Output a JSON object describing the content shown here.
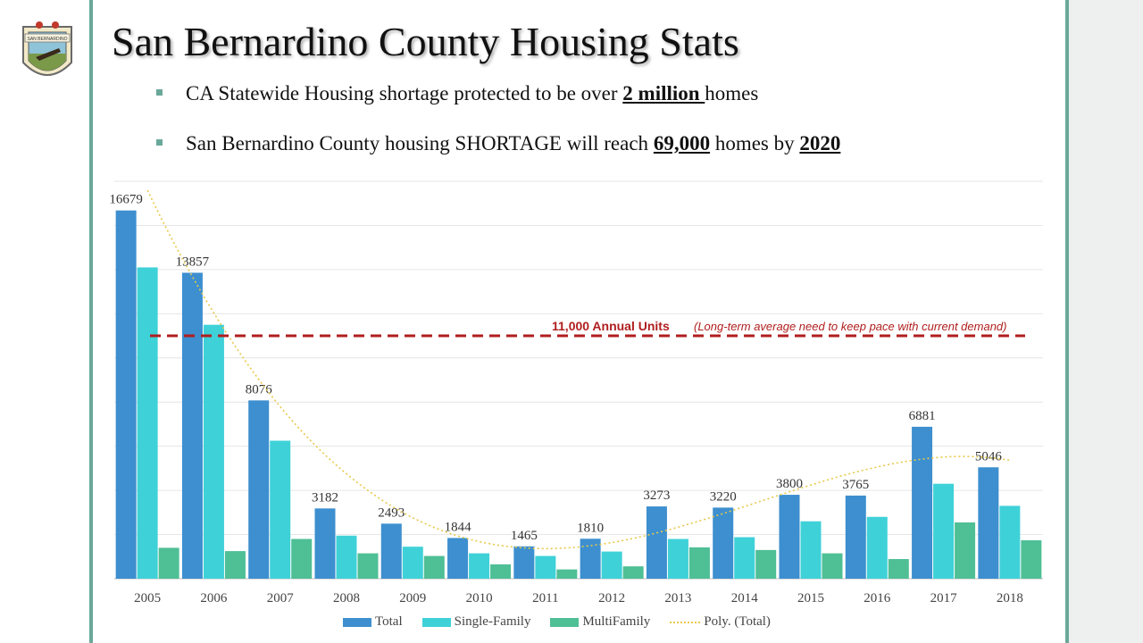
{
  "slide": {
    "title": "San Bernardino County Housing Stats",
    "bullets": [
      {
        "pre": "CA Statewide Housing shortage protected to be over ",
        "bold1": "2 million ",
        "mid": "homes",
        "bold2": "",
        "post": ""
      },
      {
        "pre": "San Bernardino County housing SHORTAGE will reach ",
        "bold1": "69,000",
        "mid": " homes by ",
        "bold2": "2020",
        "post": ""
      }
    ],
    "seal_banner": "SAN BERNARDINO"
  },
  "colors": {
    "total": "#3d8fcf",
    "single_family": "#3fd1d8",
    "multifamily": "#4fbf95",
    "poly": "#e8c84a",
    "reference_line": "#b01e1e"
  },
  "chart_data": {
    "type": "bar",
    "categories": [
      "2005",
      "2006",
      "2007",
      "2008",
      "2009",
      "2010",
      "2011",
      "2012",
      "2013",
      "2014",
      "2015",
      "2016",
      "2017",
      "2018"
    ],
    "series": [
      {
        "name": "Total",
        "values": [
          16679,
          13857,
          8076,
          3182,
          2493,
          1844,
          1465,
          1810,
          3273,
          3220,
          3800,
          3765,
          6881,
          5046
        ],
        "labeled": true
      },
      {
        "name": "Single-Family",
        "values": [
          14100,
          11500,
          6250,
          1950,
          1450,
          1150,
          1030,
          1230,
          1800,
          1880,
          2600,
          2800,
          4300,
          3300
        ]
      },
      {
        "name": "MultiFamily",
        "values": [
          1400,
          1250,
          1800,
          1150,
          1030,
          650,
          420,
          560,
          1420,
          1300,
          1150,
          890,
          2550,
          1740
        ]
      }
    ],
    "trendline": {
      "name": "Poly. (Total)",
      "type": "polynomial",
      "of_series": "Total"
    },
    "reference_line": {
      "value": 11000,
      "label": "11,000 Annual Units",
      "note": "(Long-term average need to keep pace with current demand)"
    },
    "ylim": [
      0,
      18000
    ],
    "y_gridlines": true,
    "legend_position": "bottom"
  }
}
